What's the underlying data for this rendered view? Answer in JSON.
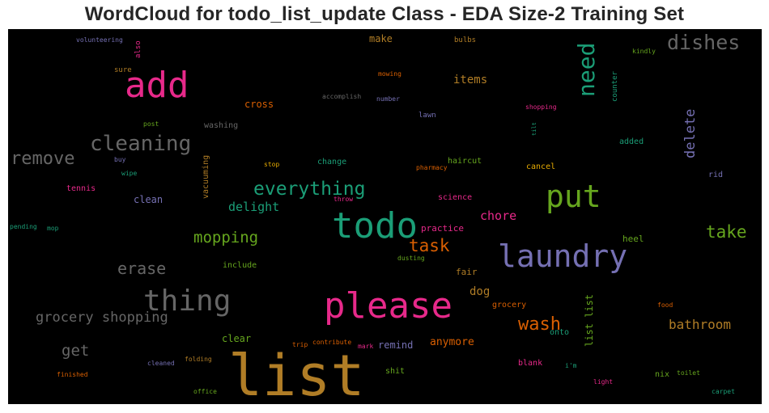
{
  "chart_data": {
    "type": "wordcloud",
    "title": "WordCloud for todo_list_update Class - EDA Size-2 Training Set",
    "words": [
      {
        "text": "list",
        "weight": 100,
        "color": "#b07d26"
      },
      {
        "text": "please",
        "weight": 72,
        "color": "#e7298a"
      },
      {
        "text": "todo",
        "weight": 72,
        "color": "#1b9e77"
      },
      {
        "text": "add",
        "weight": 70,
        "color": "#e7298a"
      },
      {
        "text": "laundry",
        "weight": 64,
        "color": "#7570b3"
      },
      {
        "text": "put",
        "weight": 62,
        "color": "#66a61e"
      },
      {
        "text": "thing",
        "weight": 60,
        "color": "#666666"
      },
      {
        "text": "need",
        "weight": 44,
        "color": "#1b9e77"
      },
      {
        "text": "cleaning",
        "weight": 42,
        "color": "#666666"
      },
      {
        "text": "dishes",
        "weight": 40,
        "color": "#666666"
      },
      {
        "text": "everything",
        "weight": 37,
        "color": "#1b9e77"
      },
      {
        "text": "remove",
        "weight": 36,
        "color": "#666666"
      },
      {
        "text": "wash",
        "weight": 36,
        "color": "#d95f02"
      },
      {
        "text": "task",
        "weight": 33,
        "color": "#d95f02"
      },
      {
        "text": "take",
        "weight": 32,
        "color": "#66a61e"
      },
      {
        "text": "erase",
        "weight": 32,
        "color": "#666666"
      },
      {
        "text": "mopping",
        "weight": 30,
        "color": "#66a61e"
      },
      {
        "text": "get",
        "weight": 30,
        "color": "#666666"
      },
      {
        "text": "delete",
        "weight": 28,
        "color": "#7570b3"
      },
      {
        "text": "grocery shopping",
        "weight": 28,
        "color": "#666666"
      },
      {
        "text": "bathroom",
        "weight": 26,
        "color": "#b07d26"
      },
      {
        "text": "chore",
        "weight": 24,
        "color": "#e7298a"
      },
      {
        "text": "delight",
        "weight": 24,
        "color": "#1b9e77"
      },
      {
        "text": "items",
        "weight": 22,
        "color": "#b07d26"
      },
      {
        "text": "dog",
        "weight": 22,
        "color": "#b07d26"
      },
      {
        "text": "list list",
        "weight": 20,
        "color": "#66a61e"
      },
      {
        "text": "anymore",
        "weight": 20,
        "color": "#d95f02"
      },
      {
        "text": "remind",
        "weight": 19,
        "color": "#7570b3"
      },
      {
        "text": "clear",
        "weight": 19,
        "color": "#66a61e"
      },
      {
        "text": "cross",
        "weight": 18,
        "color": "#d95f02"
      },
      {
        "text": "clean",
        "weight": 18,
        "color": "#7570b3"
      },
      {
        "text": "make",
        "weight": 18,
        "color": "#b07d26"
      },
      {
        "text": "heel",
        "weight": 17,
        "color": "#66a61e"
      },
      {
        "text": "practice",
        "weight": 16,
        "color": "#e7298a"
      },
      {
        "text": "fair",
        "weight": 15,
        "color": "#b07d26"
      },
      {
        "text": "vacuuming",
        "weight": 14,
        "color": "#b07d26"
      },
      {
        "text": "change",
        "weight": 14,
        "color": "#1b9e77"
      },
      {
        "text": "haircut",
        "weight": 14,
        "color": "#66a61e"
      },
      {
        "text": "cancel",
        "weight": 14,
        "color": "#e6ab02"
      },
      {
        "text": "added",
        "weight": 14,
        "color": "#1b9e77"
      },
      {
        "text": "washing",
        "weight": 14,
        "color": "#666666"
      },
      {
        "text": "rid",
        "weight": 13,
        "color": "#7570b3"
      },
      {
        "text": "include",
        "weight": 13,
        "color": "#66a61e"
      },
      {
        "text": "science",
        "weight": 13,
        "color": "#e7298a"
      },
      {
        "text": "shit",
        "weight": 13,
        "color": "#66a61e"
      },
      {
        "text": "blank",
        "weight": 13,
        "color": "#e7298a"
      },
      {
        "text": "grocery",
        "weight": 12,
        "color": "#d95f02"
      },
      {
        "text": "onto",
        "weight": 12,
        "color": "#1b9e77"
      },
      {
        "text": "nix",
        "weight": 12,
        "color": "#66a61e"
      },
      {
        "text": "tennis",
        "weight": 12,
        "color": "#e7298a"
      },
      {
        "text": "bulbs",
        "weight": 12,
        "color": "#b07d26"
      },
      {
        "text": "counter",
        "weight": 11,
        "color": "#1b9e77"
      },
      {
        "text": "lawn",
        "weight": 11,
        "color": "#7570b3"
      },
      {
        "text": "also",
        "weight": 11,
        "color": "#e7298a"
      },
      {
        "text": "sure",
        "weight": 11,
        "color": "#b07d26"
      },
      {
        "text": "kindly",
        "weight": 10,
        "color": "#66a61e"
      },
      {
        "text": "volunteering",
        "weight": 10,
        "color": "#7570b3"
      },
      {
        "text": "accomplish",
        "weight": 10,
        "color": "#666666"
      },
      {
        "text": "number",
        "weight": 10,
        "color": "#7570b3"
      },
      {
        "text": "mowing",
        "weight": 10,
        "color": "#d95f02"
      },
      {
        "text": "shopping",
        "weight": 10,
        "color": "#e7298a"
      },
      {
        "text": "post",
        "weight": 10,
        "color": "#66a61e"
      },
      {
        "text": "tilt",
        "weight": 9,
        "color": "#1b9e77"
      },
      {
        "text": "buy",
        "weight": 10,
        "color": "#7570b3"
      },
      {
        "text": "wipe",
        "weight": 10,
        "color": "#1b9e77"
      },
      {
        "text": "stop",
        "weight": 10,
        "color": "#e6ab02"
      },
      {
        "text": "pharmacy",
        "weight": 10,
        "color": "#d95f02"
      },
      {
        "text": "throw",
        "weight": 10,
        "color": "#e7298a"
      },
      {
        "text": "pending",
        "weight": 10,
        "color": "#1b9e77"
      },
      {
        "text": "mop",
        "weight": 10,
        "color": "#1b9e77"
      },
      {
        "text": "dusting",
        "weight": 10,
        "color": "#66a61e"
      },
      {
        "text": "folding",
        "weight": 10,
        "color": "#b07d26"
      },
      {
        "text": "trip",
        "weight": 10,
        "color": "#d95f02"
      },
      {
        "text": "contribute",
        "weight": 10,
        "color": "#d95f02"
      },
      {
        "text": "mark",
        "weight": 10,
        "color": "#e7298a"
      },
      {
        "text": "cleaned",
        "weight": 10,
        "color": "#7570b3"
      },
      {
        "text": "i'm",
        "weight": 10,
        "color": "#1b9e77"
      },
      {
        "text": "food",
        "weight": 10,
        "color": "#d95f02"
      },
      {
        "text": "toilet",
        "weight": 10,
        "color": "#66a61e"
      },
      {
        "text": "finished",
        "weight": 10,
        "color": "#d95f02"
      },
      {
        "text": "office",
        "weight": 10,
        "color": "#66a61e"
      },
      {
        "text": "light",
        "weight": 10,
        "color": "#e7298a"
      },
      {
        "text": "carpet",
        "weight": 10,
        "color": "#1b9e77"
      }
    ]
  }
}
